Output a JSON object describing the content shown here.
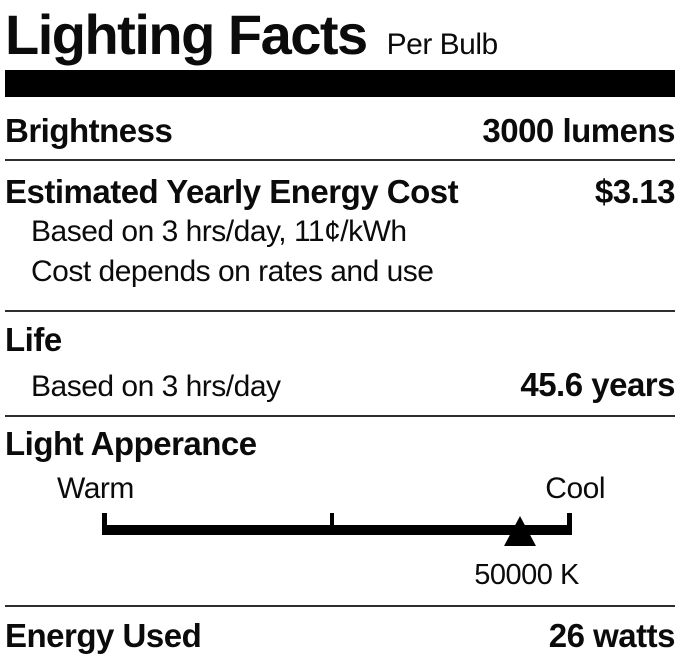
{
  "header": {
    "title": "Lighting Facts",
    "subtitle": "Per Bulb"
  },
  "brightness": {
    "label": "Brightness",
    "value": "3000 lumens"
  },
  "energy_cost": {
    "label": "Estimated Yearly Energy Cost",
    "value": "$3.13",
    "note_basis": "Based on 3 hrs/day, 11¢/kWh",
    "note_disclaimer": "Cost depends on rates and use"
  },
  "life": {
    "label": "Life",
    "note": "Based on 3 hrs/day",
    "value": "45.6 years"
  },
  "light_appearance": {
    "label": "Light Apperance",
    "warm_label": "Warm",
    "cool_label": "Cool",
    "kelvin_value": "50000 K",
    "marker_position_pct": 89,
    "mid_tick_position_pct": 48.5
  },
  "energy_used": {
    "label": "Energy Used",
    "value": "26 watts"
  },
  "colors": {
    "text": "#0b0b0b",
    "header_bar": "#000000",
    "divider": "#2e2e2e"
  }
}
